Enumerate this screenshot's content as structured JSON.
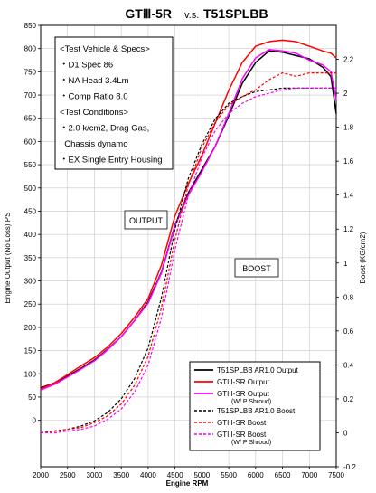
{
  "chart_data": {
    "type": "line",
    "title_left": "GTⅢ-5R",
    "title_mid": "v.s.",
    "title_right": "T51SPLBB",
    "xlabel": "Engine RPM",
    "ylabel_left": "Engine Output (No Loss) PS",
    "ylabel_right": "Boost (KG/cm2)",
    "xlim": [
      2000,
      7500
    ],
    "ylim_left": [
      -100,
      850
    ],
    "ylim_right": [
      -0.2,
      2.4
    ],
    "x_ticks": [
      "2000",
      "2500",
      "3000",
      "3500",
      "4000",
      "4500",
      "5000",
      "5500",
      "6000",
      "6500",
      "7000",
      "7500"
    ],
    "y_left_ticks": [
      "850",
      "800",
      "750",
      "700",
      "650",
      "600",
      "550",
      "500",
      "450",
      "400",
      "350",
      "300",
      "250",
      "200",
      "150",
      "100",
      "50",
      "0"
    ],
    "y_right_ticks": [
      "2.2",
      "2",
      "1.8",
      "1.6",
      "1.4",
      "1.2",
      "1",
      "0.8",
      "0.6",
      "0.4",
      "0.2",
      "0",
      "-0.2"
    ],
    "spec_lines": [
      "<Test Vehicle & Specs>",
      "・D1 Spec 86",
      "・NA Head 3.4Lm",
      "・Comp Ratio 8.0",
      "<Test Conditions>",
      "・2.0 k/cm2, Drag Gas,",
      "  Chassis dynamo",
      "・EX Single Entry Housing"
    ],
    "annotations": {
      "output": "OUTPUT",
      "boost": "BOOST"
    },
    "legend": [
      {
        "label": "T51SPLBB AR1.0 Output",
        "sub": "",
        "color": "#000000",
        "dash": false
      },
      {
        "label": "GTIII-SR Output",
        "sub": "",
        "color": "#ff0000",
        "dash": false
      },
      {
        "label": "GTIII-SR Output",
        "sub": "(W/ P Shroud)",
        "color": "#ff00ff",
        "dash": false
      },
      {
        "label": "T51SPLBB AR1.0 Boost",
        "sub": "",
        "color": "#000000",
        "dash": true
      },
      {
        "label": "GTIII-SR Boost",
        "sub": "",
        "color": "#ff0000",
        "dash": true
      },
      {
        "label": "GTIII-SR Boost",
        "sub": "(W/ P Shroud)",
        "color": "#ff00ff",
        "dash": true
      }
    ],
    "series": [
      {
        "name": "T51SPLBB AR1.0 Output",
        "axis": "left",
        "color": "#000000",
        "dash": false,
        "x": [
          2000,
          2250,
          2500,
          2750,
          3000,
          3250,
          3500,
          3750,
          4000,
          4250,
          4500,
          4750,
          5000,
          5250,
          5500,
          5750,
          6000,
          6250,
          6500,
          6750,
          7000,
          7250,
          7400,
          7500
        ],
        "y": [
          70,
          80,
          95,
          112,
          130,
          153,
          180,
          215,
          255,
          320,
          420,
          490,
          540,
          590,
          655,
          725,
          770,
          795,
          792,
          785,
          778,
          760,
          740,
          660
        ]
      },
      {
        "name": "GTIII-SR Output",
        "axis": "left",
        "color": "#ff0000",
        "dash": false,
        "x": [
          2000,
          2250,
          2500,
          2750,
          3000,
          3250,
          3500,
          3750,
          4000,
          4250,
          4500,
          4750,
          5000,
          5250,
          5500,
          5750,
          6000,
          6250,
          6500,
          6750,
          7000,
          7250,
          7400,
          7500
        ],
        "y": [
          68,
          80,
          98,
          117,
          135,
          158,
          187,
          222,
          262,
          335,
          440,
          510,
          570,
          640,
          710,
          770,
          805,
          815,
          818,
          815,
          805,
          795,
          790,
          780
        ]
      },
      {
        "name": "GTIII-SR Output (W/ P Shroud)",
        "axis": "left",
        "color": "#ff00ff",
        "dash": false,
        "x": [
          2000,
          2250,
          2500,
          2750,
          3000,
          3250,
          3500,
          3750,
          4000,
          4250,
          4500,
          4750,
          5000,
          5250,
          5500,
          5750,
          6000,
          6250,
          6500,
          6750,
          7000,
          7250,
          7400,
          7500
        ],
        "y": [
          65,
          77,
          93,
          110,
          128,
          152,
          180,
          215,
          252,
          318,
          418,
          485,
          535,
          590,
          660,
          735,
          780,
          798,
          795,
          790,
          775,
          765,
          750,
          690
        ]
      },
      {
        "name": "T51SPLBB AR1.0 Boost",
        "axis": "right",
        "color": "#000000",
        "dash": true,
        "x": [
          2000,
          2250,
          2500,
          2750,
          3000,
          3250,
          3500,
          3750,
          4000,
          4250,
          4500,
          4750,
          5000,
          5250,
          5500,
          5750,
          6000,
          6250,
          6500,
          6750,
          7000,
          7250,
          7500
        ],
        "y": [
          0,
          0.01,
          0.02,
          0.04,
          0.07,
          0.12,
          0.2,
          0.32,
          0.5,
          0.8,
          1.2,
          1.5,
          1.7,
          1.85,
          1.94,
          1.98,
          2.01,
          2.02,
          2.03,
          2.03,
          2.03,
          2.03,
          2.03
        ]
      },
      {
        "name": "GTIII-SR Boost",
        "axis": "right",
        "color": "#ff0000",
        "dash": true,
        "x": [
          2000,
          2250,
          2500,
          2750,
          3000,
          3250,
          3500,
          3750,
          4000,
          4250,
          4500,
          4750,
          5000,
          5250,
          5500,
          5750,
          6000,
          6250,
          6500,
          6750,
          7000,
          7250,
          7500
        ],
        "y": [
          0,
          0.01,
          0.02,
          0.03,
          0.06,
          0.1,
          0.17,
          0.28,
          0.45,
          0.74,
          1.14,
          1.46,
          1.68,
          1.83,
          1.93,
          1.98,
          2.02,
          2.08,
          2.12,
          2.1,
          2.12,
          2.12,
          2.12
        ]
      },
      {
        "name": "GTIII-SR Boost (W/ P Shroud)",
        "axis": "right",
        "color": "#ff00ff",
        "dash": true,
        "x": [
          2000,
          2250,
          2500,
          2750,
          3000,
          3250,
          3500,
          3750,
          4000,
          4250,
          4500,
          4750,
          5000,
          5250,
          5500,
          5750,
          6000,
          6250,
          6500,
          6750,
          7000,
          7250,
          7500
        ],
        "y": [
          0,
          0,
          0.01,
          0.02,
          0.04,
          0.08,
          0.14,
          0.24,
          0.4,
          0.68,
          1.08,
          1.4,
          1.62,
          1.78,
          1.88,
          1.94,
          1.98,
          2.0,
          2.02,
          2.03,
          2.03,
          2.03,
          2.03
        ]
      }
    ]
  }
}
